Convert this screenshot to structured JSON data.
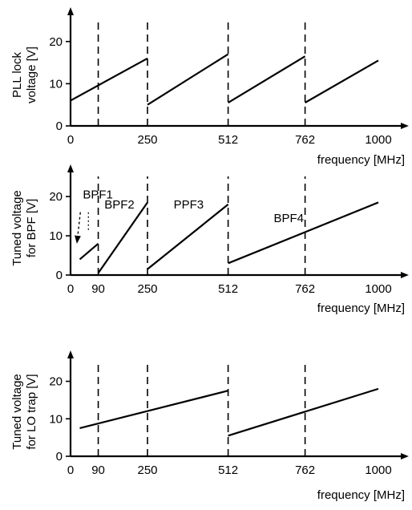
{
  "chart_data": [
    {
      "type": "line",
      "ylabel": "PLL lock voltage [V]",
      "xlabel": "frequency [MHz]",
      "x_ticks": [
        0,
        250,
        512,
        762,
        1000
      ],
      "y_ticks": [
        0,
        10,
        20
      ],
      "ylim": [
        0,
        25
      ],
      "xlim": [
        0,
        1000
      ],
      "dashed_x": [
        90,
        250,
        512,
        762
      ],
      "series": [
        {
          "x": [
            0,
            250
          ],
          "y": [
            6,
            16
          ]
        },
        {
          "x": [
            250,
            512
          ],
          "y": [
            5,
            17
          ]
        },
        {
          "x": [
            512,
            762
          ],
          "y": [
            5.5,
            16.5
          ]
        },
        {
          "x": [
            762,
            1000
          ],
          "y": [
            5.5,
            15.5
          ]
        }
      ],
      "annotations": []
    },
    {
      "type": "line",
      "ylabel": "Tuned voltage for BPF [V]",
      "xlabel": "frequency [MHz]",
      "x_ticks": [
        0,
        90,
        250,
        512,
        762,
        1000
      ],
      "y_ticks": [
        0,
        10,
        20
      ],
      "ylim": [
        0,
        25
      ],
      "xlim": [
        0,
        1000
      ],
      "dashed_x": [
        90,
        250,
        512,
        762
      ],
      "series": [
        {
          "x": [
            30,
            90
          ],
          "y": [
            4,
            8
          ]
        },
        {
          "x": [
            90,
            250
          ],
          "y": [
            0.5,
            18.5
          ]
        },
        {
          "x": [
            250,
            512
          ],
          "y": [
            1.5,
            18
          ]
        },
        {
          "x": [
            512,
            1000
          ],
          "y": [
            3,
            18.5
          ]
        }
      ],
      "annotations": [
        {
          "text": "BPF1",
          "x": 40,
          "y": 19.5
        },
        {
          "text": "BPF2",
          "x": 110,
          "y": 17
        },
        {
          "text": "PPF3",
          "x": 335,
          "y": 17
        },
        {
          "text": "BPF4",
          "x": 660,
          "y": 13.5
        }
      ]
    },
    {
      "type": "line",
      "ylabel": "Tuned voltage for LO trap [V]",
      "xlabel": "frequency [MHz]",
      "x_ticks": [
        0,
        90,
        250,
        512,
        762,
        1000
      ],
      "y_ticks": [
        0,
        10,
        20
      ],
      "ylim": [
        0,
        25
      ],
      "xlim": [
        0,
        1000
      ],
      "dashed_x": [
        90,
        250,
        512,
        762
      ],
      "series": [
        {
          "x": [
            30,
            512
          ],
          "y": [
            7.5,
            17.5
          ]
        },
        {
          "x": [
            512,
            1000
          ],
          "y": [
            5.5,
            18
          ]
        }
      ],
      "annotations": []
    }
  ]
}
